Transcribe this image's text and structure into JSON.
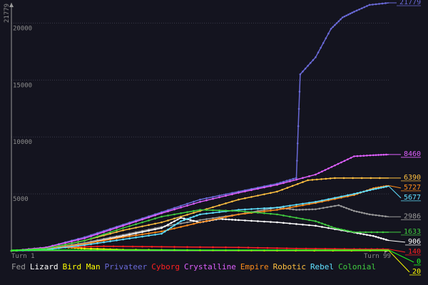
{
  "chart_data": {
    "type": "line",
    "ymax_label": "21779",
    "y_ticks": [
      5000,
      10000,
      15000,
      20000
    ],
    "ylim": [
      0,
      21779
    ],
    "xlim": [
      1,
      99
    ],
    "x_start_label": "Turn 1",
    "x_end_label": "Turn 99",
    "grid": true,
    "series": [
      {
        "name": "Fed",
        "color": "#9a9a9a",
        "final": "2986",
        "points": [
          [
            1,
            0
          ],
          [
            10,
            150
          ],
          [
            20,
            700
          ],
          [
            30,
            1400
          ],
          [
            40,
            2100
          ],
          [
            50,
            2700
          ],
          [
            60,
            3200
          ],
          [
            70,
            3800
          ],
          [
            75,
            3600
          ],
          [
            80,
            3650
          ],
          [
            86,
            4000
          ],
          [
            90,
            3500
          ],
          [
            94,
            3200
          ],
          [
            99,
            2986
          ]
        ]
      },
      {
        "name": "Lizard",
        "color": "#ffffff",
        "final": "906",
        "points": [
          [
            1,
            0
          ],
          [
            10,
            150
          ],
          [
            20,
            600
          ],
          [
            30,
            1300
          ],
          [
            40,
            2000
          ],
          [
            45,
            2900
          ],
          [
            50,
            2500
          ],
          [
            55,
            2800
          ],
          [
            60,
            2700
          ],
          [
            70,
            2500
          ],
          [
            80,
            2200
          ],
          [
            90,
            1600
          ],
          [
            95,
            1300
          ],
          [
            99,
            906
          ]
        ]
      },
      {
        "name": "Bird Man",
        "color": "#ffff00",
        "final": "20",
        "points": [
          [
            1,
            0
          ],
          [
            8,
            150
          ],
          [
            15,
            300
          ],
          [
            20,
            200
          ],
          [
            30,
            100
          ],
          [
            50,
            50
          ],
          [
            70,
            30
          ],
          [
            99,
            20
          ]
        ]
      },
      {
        "name": "Privateer",
        "color": "#6a6ad8",
        "final": "21779",
        "points": [
          [
            1,
            0
          ],
          [
            10,
            300
          ],
          [
            20,
            1200
          ],
          [
            30,
            2300
          ],
          [
            40,
            3400
          ],
          [
            50,
            4500
          ],
          [
            60,
            5200
          ],
          [
            70,
            5900
          ],
          [
            75,
            6400
          ],
          [
            76,
            15500
          ],
          [
            80,
            17000
          ],
          [
            84,
            19500
          ],
          [
            87,
            20500
          ],
          [
            90,
            21000
          ],
          [
            94,
            21600
          ],
          [
            99,
            21779
          ]
        ]
      },
      {
        "name": "Cyborg",
        "color": "#ff2020",
        "final": "140",
        "points": [
          [
            1,
            0
          ],
          [
            15,
            300
          ],
          [
            25,
            400
          ],
          [
            40,
            350
          ],
          [
            60,
            300
          ],
          [
            75,
            200
          ],
          [
            90,
            150
          ],
          [
            99,
            140
          ]
        ]
      },
      {
        "name": "Crystalline",
        "color": "#e060ff",
        "final": "8460",
        "points": [
          [
            1,
            0
          ],
          [
            10,
            300
          ],
          [
            20,
            1100
          ],
          [
            30,
            2200
          ],
          [
            40,
            3300
          ],
          [
            50,
            4300
          ],
          [
            60,
            5100
          ],
          [
            70,
            5800
          ],
          [
            80,
            6700
          ],
          [
            85,
            7500
          ],
          [
            90,
            8300
          ],
          [
            95,
            8400
          ],
          [
            99,
            8460
          ]
        ]
      },
      {
        "name": "Empire",
        "color": "#ff8c1a",
        "final": "5727",
        "points": [
          [
            1,
            0
          ],
          [
            10,
            150
          ],
          [
            20,
            600
          ],
          [
            30,
            1200
          ],
          [
            40,
            1700
          ],
          [
            50,
            2500
          ],
          [
            60,
            3200
          ],
          [
            70,
            3600
          ],
          [
            80,
            4200
          ],
          [
            90,
            4900
          ],
          [
            95,
            5500
          ],
          [
            99,
            5727
          ]
        ]
      },
      {
        "name": "Robotic",
        "color": "#ffc040",
        "final": "6390",
        "points": [
          [
            1,
            0
          ],
          [
            10,
            200
          ],
          [
            20,
            900
          ],
          [
            30,
            1800
          ],
          [
            40,
            2500
          ],
          [
            50,
            3500
          ],
          [
            60,
            4500
          ],
          [
            70,
            5200
          ],
          [
            78,
            6200
          ],
          [
            85,
            6390
          ],
          [
            99,
            6390
          ]
        ]
      },
      {
        "name": "Rebel",
        "color": "#60e0ff",
        "final": "5677",
        "points": [
          [
            1,
            0
          ],
          [
            10,
            100
          ],
          [
            20,
            500
          ],
          [
            30,
            1000
          ],
          [
            40,
            1500
          ],
          [
            45,
            2600
          ],
          [
            50,
            3200
          ],
          [
            60,
            3600
          ],
          [
            70,
            3800
          ],
          [
            80,
            4300
          ],
          [
            90,
            5000
          ],
          [
            95,
            5400
          ],
          [
            99,
            5677
          ]
        ]
      },
      {
        "name": "Colonial",
        "color": "#40cc40",
        "final": "1633",
        "points": [
          [
            1,
            0
          ],
          [
            10,
            200
          ],
          [
            20,
            900
          ],
          [
            30,
            2000
          ],
          [
            40,
            3000
          ],
          [
            50,
            3600
          ],
          [
            60,
            3500
          ],
          [
            70,
            3200
          ],
          [
            80,
            2600
          ],
          [
            85,
            2000
          ],
          [
            90,
            1633
          ],
          [
            99,
            1633
          ]
        ]
      }
    ],
    "baseline_series": [
      {
        "color": "#20ff20",
        "final": "0"
      }
    ]
  }
}
